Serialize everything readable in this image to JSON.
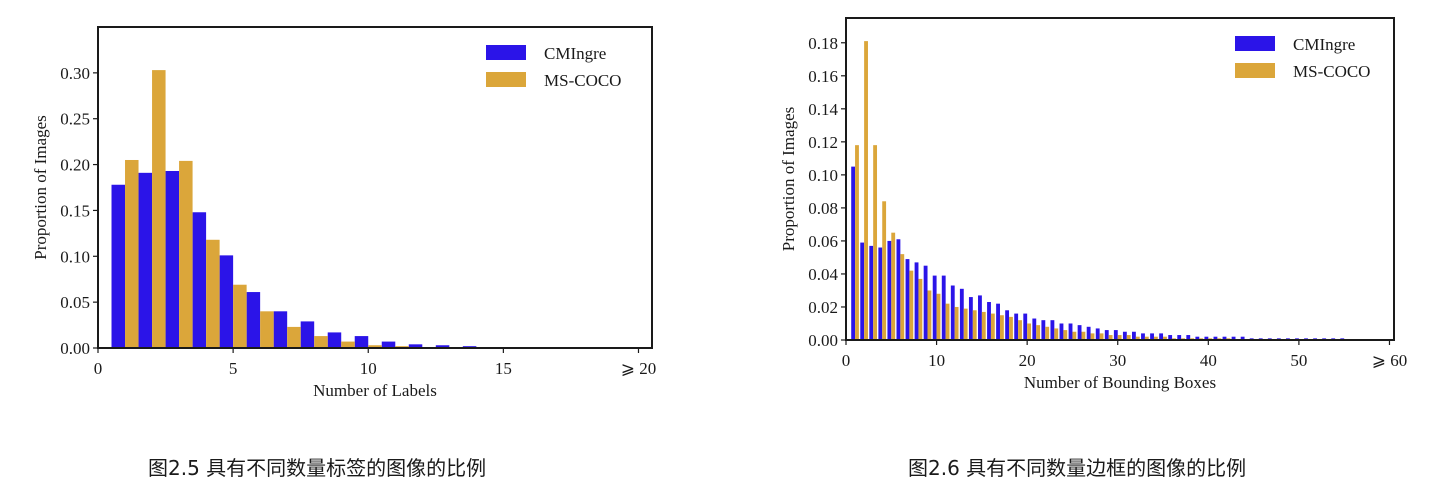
{
  "figures": [
    {
      "caption": "图2.5 具有不同数量标签的图像的比例",
      "chart_data": {
        "type": "bar",
        "xlabel": "Number of Labels",
        "ylabel": "Proportion of Images",
        "xlim": [
          0,
          20.5
        ],
        "ylim": [
          0,
          0.35
        ],
        "xticks": [
          {
            "value": 0,
            "label": "0"
          },
          {
            "value": 5,
            "label": "5"
          },
          {
            "value": 10,
            "label": "10"
          },
          {
            "value": 15,
            "label": "15"
          },
          {
            "value": 20,
            "label": "⩾ 20"
          }
        ],
        "yticks": [
          {
            "value": 0,
            "label": "0.00"
          },
          {
            "value": 0.05,
            "label": "0.05"
          },
          {
            "value": 0.1,
            "label": "0.10"
          },
          {
            "value": 0.15,
            "label": "0.15"
          },
          {
            "value": 0.2,
            "label": "0.20"
          },
          {
            "value": 0.25,
            "label": "0.25"
          },
          {
            "value": 0.3,
            "label": "0.30"
          }
        ],
        "legend_position": "top-right",
        "grid": false,
        "x": [
          1,
          2,
          3,
          4,
          5,
          6,
          7,
          8,
          9,
          10,
          11,
          12,
          13,
          14,
          15,
          16,
          17,
          18
        ],
        "series": [
          {
            "name": "CMIngre",
            "color": "#2b14e8",
            "values": [
              0.178,
              0.191,
              0.193,
              0.148,
              0.101,
              0.061,
              0.04,
              0.029,
              0.017,
              0.013,
              0.007,
              0.004,
              0.003,
              0.002,
              0.001,
              0.0005,
              0.0005,
              0.0005
            ]
          },
          {
            "name": "MS-COCO",
            "color": "#dba63a",
            "values": [
              0.205,
              0.303,
              0.204,
              0.118,
              0.069,
              0.04,
              0.023,
              0.013,
              0.007,
              0.003,
              0.002,
              0.001,
              0.0005,
              0.0005,
              0.0003,
              0.0002,
              0.0002,
              0.0002
            ]
          }
        ]
      }
    },
    {
      "caption": "图2.6 具有不同数量边框的图像的比例",
      "chart_data": {
        "type": "bar",
        "xlabel": "Number of Bounding Boxes",
        "ylabel": "Proportion of Images",
        "xlim": [
          0,
          60.5
        ],
        "ylim": [
          0,
          0.195
        ],
        "xticks": [
          {
            "value": 0,
            "label": "0"
          },
          {
            "value": 10,
            "label": "10"
          },
          {
            "value": 20,
            "label": "20"
          },
          {
            "value": 30,
            "label": "30"
          },
          {
            "value": 40,
            "label": "40"
          },
          {
            "value": 50,
            "label": "50"
          },
          {
            "value": 60,
            "label": "⩾ 60"
          }
        ],
        "yticks": [
          {
            "value": 0,
            "label": "0.00"
          },
          {
            "value": 0.02,
            "label": "0.02"
          },
          {
            "value": 0.04,
            "label": "0.04"
          },
          {
            "value": 0.06,
            "label": "0.06"
          },
          {
            "value": 0.08,
            "label": "0.08"
          },
          {
            "value": 0.1,
            "label": "0.10"
          },
          {
            "value": 0.12,
            "label": "0.12"
          },
          {
            "value": 0.14,
            "label": "0.14"
          },
          {
            "value": 0.16,
            "label": "0.16"
          },
          {
            "value": 0.18,
            "label": "0.18"
          }
        ],
        "legend_position": "top-right",
        "grid": false,
        "x": [
          1,
          2,
          3,
          4,
          5,
          6,
          7,
          8,
          9,
          10,
          11,
          12,
          13,
          14,
          15,
          16,
          17,
          18,
          19,
          20,
          21,
          22,
          23,
          24,
          25,
          26,
          27,
          28,
          29,
          30,
          31,
          32,
          33,
          34,
          35,
          36,
          37,
          38,
          39,
          40,
          41,
          42,
          43,
          44,
          45,
          46,
          47,
          48,
          49,
          50,
          51,
          52,
          53,
          54,
          55
        ],
        "series": [
          {
            "name": "CMIngre",
            "color": "#2b14e8",
            "values": [
              0.105,
              0.059,
              0.057,
              0.056,
              0.06,
              0.061,
              0.049,
              0.047,
              0.045,
              0.039,
              0.039,
              0.033,
              0.031,
              0.026,
              0.027,
              0.023,
              0.022,
              0.018,
              0.016,
              0.016,
              0.013,
              0.012,
              0.012,
              0.01,
              0.01,
              0.009,
              0.008,
              0.007,
              0.006,
              0.006,
              0.005,
              0.005,
              0.004,
              0.004,
              0.004,
              0.003,
              0.003,
              0.003,
              0.002,
              0.002,
              0.002,
              0.002,
              0.002,
              0.002,
              0.001,
              0.001,
              0.001,
              0.001,
              0.001,
              0.001,
              0.001,
              0.001,
              0.001,
              0.001,
              0.001
            ]
          },
          {
            "name": "MS-COCO",
            "color": "#dba63a",
            "values": [
              0.118,
              0.181,
              0.118,
              0.084,
              0.065,
              0.052,
              0.042,
              0.037,
              0.03,
              0.028,
              0.022,
              0.02,
              0.019,
              0.018,
              0.017,
              0.016,
              0.015,
              0.014,
              0.012,
              0.01,
              0.009,
              0.008,
              0.007,
              0.006,
              0.005,
              0.005,
              0.004,
              0.004,
              0.003,
              0.003,
              0.003,
              0.002,
              0.002,
              0.002,
              0.002,
              0.001,
              0.001,
              0.001,
              0.001,
              0.001,
              0.001,
              0.001,
              0.0005,
              0.0005,
              0.0005,
              0.0005,
              0.0005,
              0.0005,
              0.0005,
              0.0005,
              0.0005,
              0.0005,
              0.0005,
              0.0005,
              0.0005
            ]
          }
        ]
      }
    }
  ]
}
